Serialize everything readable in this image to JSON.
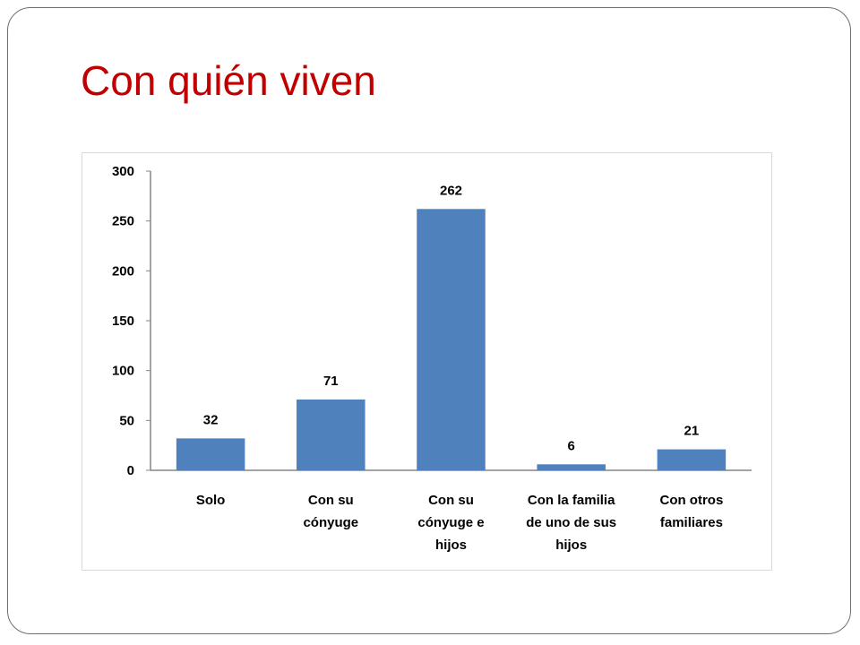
{
  "slide": {
    "title": "Con quién viven"
  },
  "chart_data": {
    "type": "bar",
    "categories": [
      [
        "Solo"
      ],
      [
        "Con su",
        "cónyuge"
      ],
      [
        "Con su",
        "cónyuge e",
        "hijos"
      ],
      [
        "Con la familia",
        "de uno de sus",
        "hijos"
      ],
      [
        "Con otros",
        "familiares"
      ]
    ],
    "values": [
      32,
      71,
      262,
      6,
      21
    ],
    "data_labels": [
      "32",
      "71",
      "262",
      "6",
      "21"
    ],
    "ylim": [
      0,
      300
    ],
    "yticks": [
      0,
      50,
      100,
      150,
      200,
      250,
      300
    ],
    "bar_color": "#4f81bd",
    "grid": false,
    "legend": "none",
    "xlabel": "",
    "ylabel": ""
  }
}
